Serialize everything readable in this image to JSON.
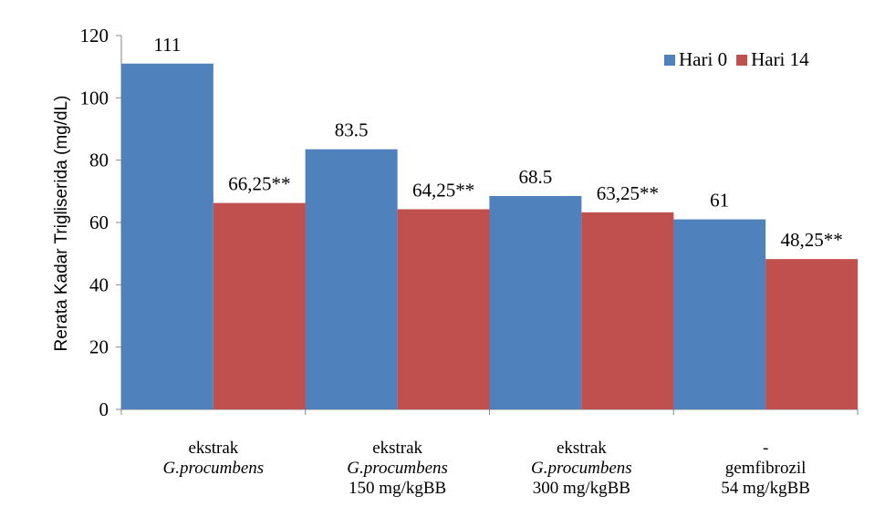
{
  "chart_data": {
    "type": "bar",
    "title": "",
    "xlabel": "",
    "ylabel": "Rerata Kadar Trigliserida (mg/dL)",
    "ylim": [
      0,
      120
    ],
    "yticks": [
      0,
      20,
      40,
      60,
      80,
      100,
      120
    ],
    "grid": false,
    "legend_position": "top-right",
    "categories": [
      {
        "lines": [
          {
            "text": "ekstrak",
            "italic": false
          },
          {
            "text": "G.procumbens",
            "italic": true
          }
        ]
      },
      {
        "lines": [
          {
            "text": "ekstrak",
            "italic": false
          },
          {
            "text": "G.procumbens",
            "italic": true
          },
          {
            "text": "150 mg/kgBB",
            "italic": false
          }
        ]
      },
      {
        "lines": [
          {
            "text": "ekstrak",
            "italic": false
          },
          {
            "text": "G.procumbens",
            "italic": true
          },
          {
            "text": "300 mg/kgBB",
            "italic": false
          }
        ]
      },
      {
        "lines": [
          {
            "text": "-",
            "italic": false
          },
          {
            "text": "gemfibrozil",
            "italic": false
          },
          {
            "text": "54 mg/kgBB",
            "italic": false
          }
        ]
      }
    ],
    "series": [
      {
        "name": "Hari 0",
        "color": "#4f81bd",
        "values": [
          111,
          83.5,
          68.5,
          61
        ],
        "labels": [
          "111",
          "83.5",
          "68.5",
          "61"
        ]
      },
      {
        "name": "Hari 14",
        "color": "#c0504d",
        "values": [
          66.25,
          64.25,
          63.25,
          48.25
        ],
        "labels": [
          "66,25**",
          "64,25**",
          "63,25**",
          "48,25**"
        ]
      }
    ]
  }
}
